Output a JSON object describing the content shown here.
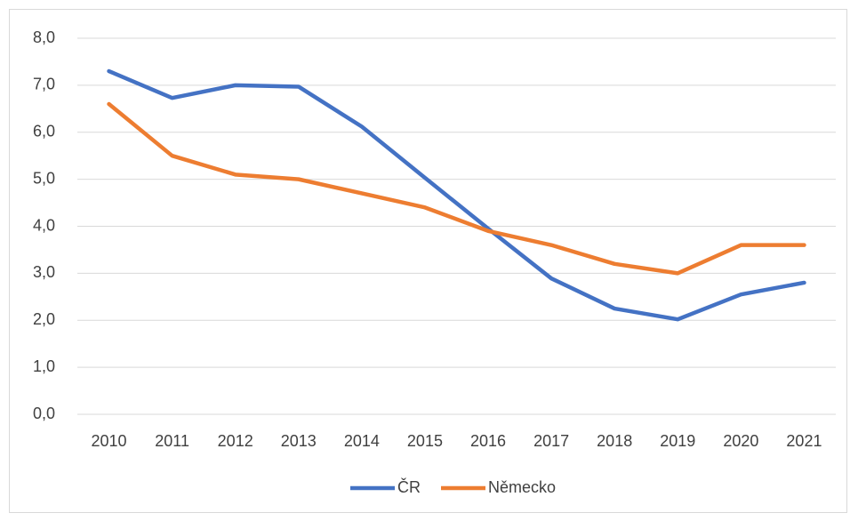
{
  "chart_data": {
    "type": "line",
    "categories": [
      "2010",
      "2011",
      "2012",
      "2013",
      "2014",
      "2015",
      "2016",
      "2017",
      "2018",
      "2019",
      "2020",
      "2021"
    ],
    "series": [
      {
        "name": "ČR",
        "color": "#4472c4",
        "values": [
          7.3,
          6.73,
          7.0,
          6.97,
          6.12,
          5.03,
          3.95,
          2.89,
          2.25,
          2.02,
          2.55,
          2.8
        ]
      },
      {
        "name": "Německo",
        "color": "#ed7d31",
        "values": [
          6.6,
          5.5,
          5.1,
          5.0,
          4.7,
          4.4,
          3.9,
          3.6,
          3.2,
          3.0,
          3.6,
          3.6
        ]
      }
    ],
    "ylim": [
      0,
      8
    ],
    "yticks": [
      {
        "value": 0,
        "label": "0,0"
      },
      {
        "value": 1,
        "label": "1,0"
      },
      {
        "value": 2,
        "label": "2,0"
      },
      {
        "value": 3,
        "label": "3,0"
      },
      {
        "value": 4,
        "label": "4,0"
      },
      {
        "value": 5,
        "label": "5,0"
      },
      {
        "value": 6,
        "label": "6,0"
      },
      {
        "value": 7,
        "label": "7,0"
      },
      {
        "value": 8,
        "label": "8,0"
      }
    ],
    "grid": true,
    "legend": "bottom"
  }
}
